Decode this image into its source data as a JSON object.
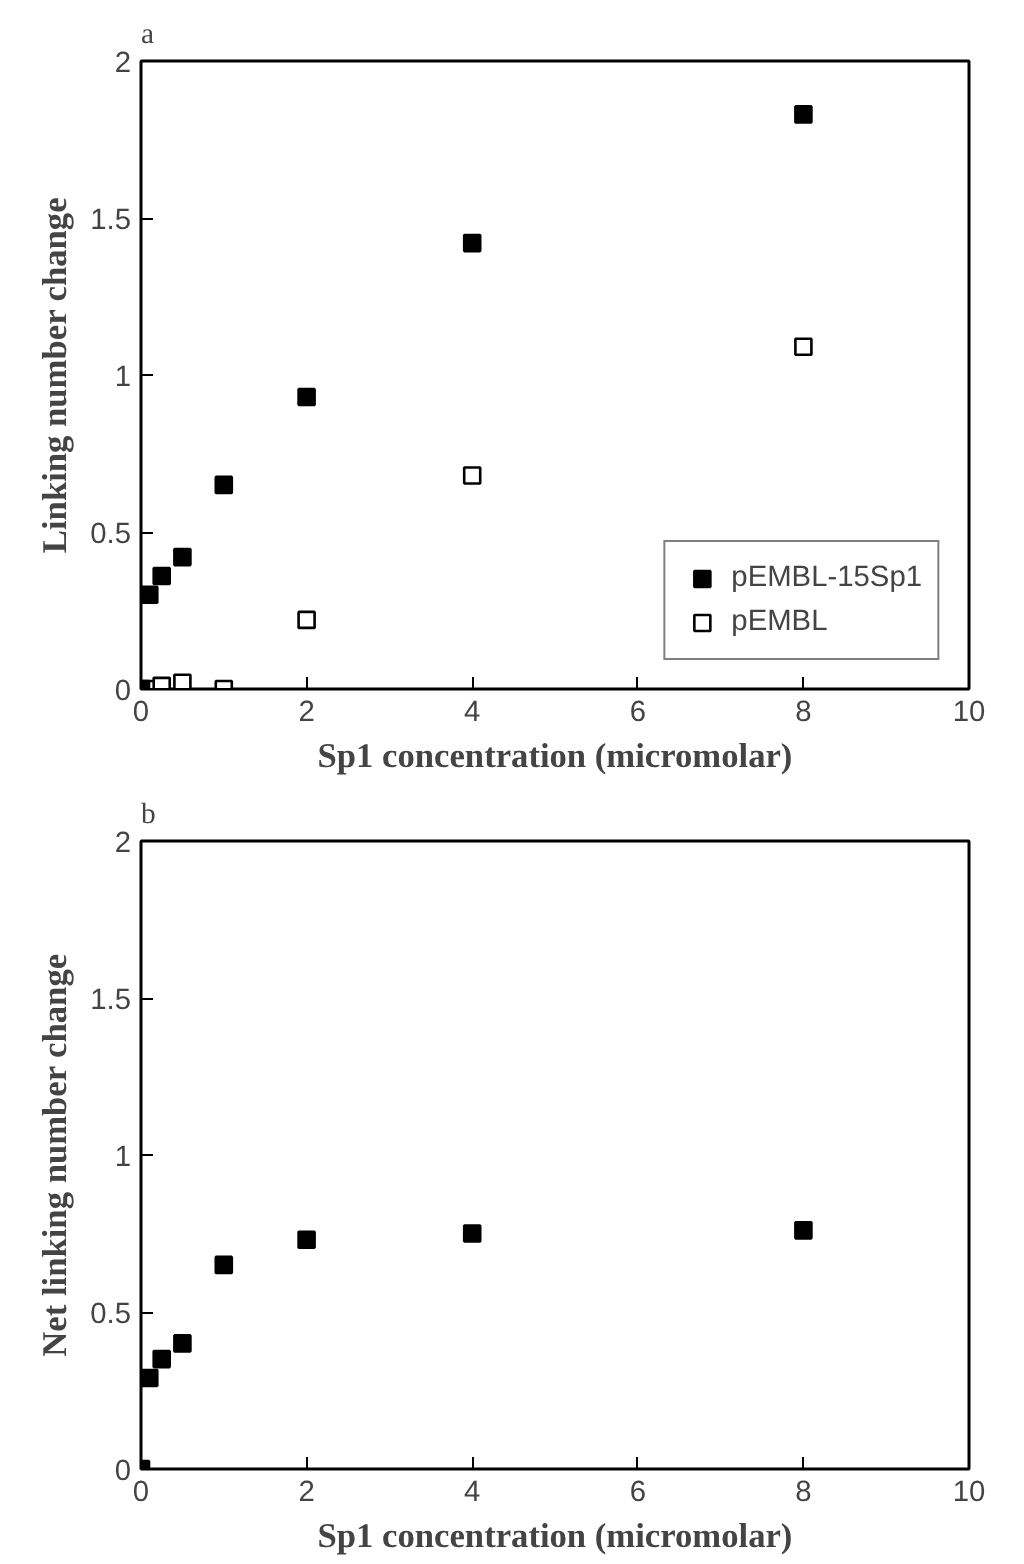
{
  "chart_data": [
    {
      "type": "scatter",
      "title": "a",
      "xlabel": "Sp1 concentration (micromolar)",
      "ylabel": "Linking number change",
      "xlim": [
        0,
        10
      ],
      "ylim": [
        0,
        2
      ],
      "xticks": [
        0,
        2,
        4,
        6,
        8,
        10
      ],
      "yticks": [
        0,
        0.5,
        1,
        1.5,
        2
      ],
      "marker": "square",
      "legend": "bottom right",
      "grid": false,
      "series": [
        {
          "name": "pEMBL-15Sp1",
          "color": "#000000",
          "x": [
            0,
            0.1,
            0.25,
            0.5,
            1,
            2,
            4,
            8
          ],
          "values": [
            0,
            0.3,
            0.36,
            0.42,
            0.65,
            0.93,
            1.42,
            1.83
          ]
        },
        {
          "name": "pEMBL",
          "color": "#ffffff",
          "x": [
            0.1,
            0.25,
            0.5,
            1,
            2,
            4,
            8
          ],
          "values": [
            0,
            0.01,
            0.02,
            0,
            0.22,
            0.68,
            1.09
          ]
        }
      ]
    },
    {
      "type": "scatter",
      "title": "b",
      "xlabel": "Sp1 concentration (micromolar)",
      "ylabel": "Net linking number change",
      "xlim": [
        0,
        10
      ],
      "ylim": [
        0,
        2
      ],
      "xticks": [
        0,
        2,
        4,
        6,
        8,
        10
      ],
      "yticks": [
        0,
        0.5,
        1,
        1.5,
        2
      ],
      "marker": "square",
      "grid": false,
      "series": [
        {
          "color": "#000000",
          "x": [
            0,
            0.1,
            0.25,
            0.5,
            1,
            2,
            4,
            8
          ],
          "values": [
            0,
            0.29,
            0.35,
            0.4,
            0.65,
            0.73,
            0.75,
            0.76
          ]
        }
      ]
    }
  ]
}
